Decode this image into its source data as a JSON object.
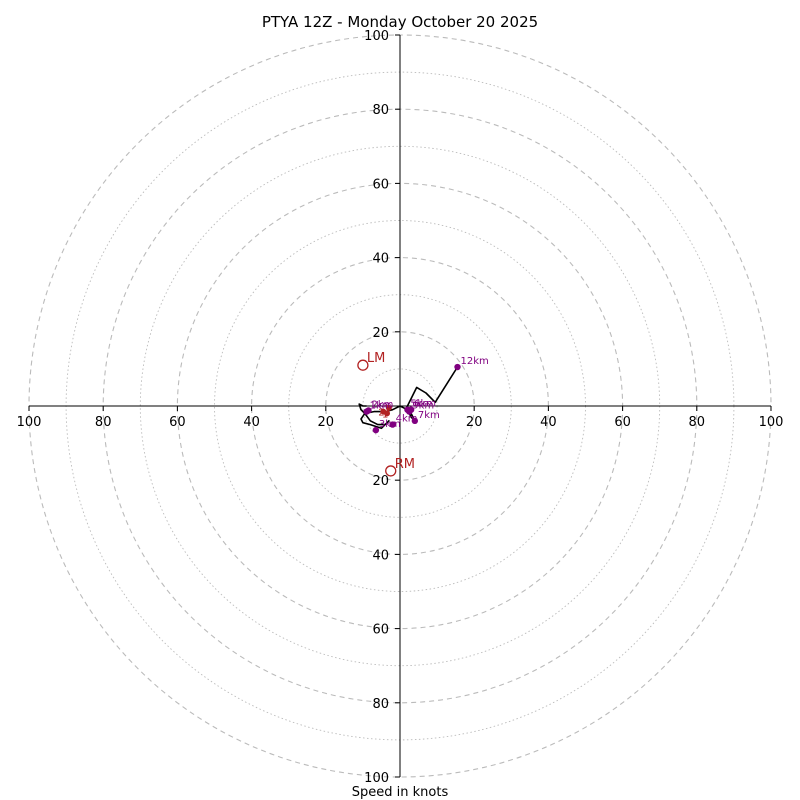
{
  "chart_data": {
    "type": "hodograph",
    "title": "PTYA 12Z - Monday October 20 2025",
    "xlabel": "Speed in knots",
    "speed_max": 100,
    "ring_ticks": [
      20,
      40,
      60,
      80,
      100
    ],
    "grid": "dashed rings every 20 kt, dotted rings every 10 kt",
    "tick_labels": {
      "x_left": [
        "100",
        "80",
        "60",
        "40",
        "20"
      ],
      "x_right": [
        "20",
        "40",
        "60",
        "80",
        "100"
      ],
      "y_top": [
        "100",
        "80",
        "60",
        "40",
        "20"
      ],
      "y_bottom": [
        "20",
        "40",
        "60",
        "80",
        "100"
      ]
    },
    "trace_units": "u/v wind components in knots",
    "trace": [
      [
        -9,
        0
      ],
      [
        -10,
        0
      ],
      [
        -11,
        0.5
      ],
      [
        -10.5,
        -1
      ],
      [
        -9.5,
        -2
      ],
      [
        -8,
        -4
      ],
      [
        -6,
        -5
      ],
      [
        -4,
        -5
      ],
      [
        -3,
        -4
      ],
      [
        -5,
        -6
      ],
      [
        -8,
        -5
      ],
      [
        -10,
        -4.5
      ],
      [
        -10.5,
        -3.5
      ],
      [
        -9.5,
        -2
      ],
      [
        -7,
        -1.5
      ],
      [
        -4,
        -1.5
      ],
      [
        -2,
        -1
      ],
      [
        0,
        0
      ],
      [
        2,
        -1
      ],
      [
        3,
        -2
      ],
      [
        4,
        -4
      ],
      [
        3,
        -3
      ],
      [
        2.5,
        -2
      ],
      [
        1.5,
        -1
      ],
      [
        3,
        2
      ],
      [
        4.5,
        5
      ],
      [
        7,
        3.5
      ],
      [
        9.5,
        1
      ],
      [
        15.5,
        10.5
      ]
    ],
    "height_markers": [
      {
        "label": "1km",
        "u": -9,
        "v": -1.5
      },
      {
        "label": "2km",
        "u": -8.5,
        "v": -1.2
      },
      {
        "label": "3km",
        "u": -6.5,
        "v": -6.5
      },
      {
        "label": "4km",
        "u": -2,
        "v": -5
      },
      {
        "label": "5km",
        "u": 2,
        "v": -1
      },
      {
        "label": "6km",
        "u": 3,
        "v": -1
      },
      {
        "label": "7km",
        "u": 4,
        "v": -4
      },
      {
        "label": "9km",
        "u": 2.5,
        "v": -1.5
      },
      {
        "label": "12km",
        "u": 15.5,
        "v": 10.5
      }
    ],
    "inner_markers": [
      {
        "label": "1",
        "u": -3.5,
        "v": -2
      },
      {
        "label": "2",
        "u": -4.5,
        "v": -1.5
      },
      {
        "label": "3",
        "u": -3,
        "v": -0.5
      }
    ],
    "storm_motion": [
      {
        "label": "LM",
        "u": -10,
        "v": 11
      },
      {
        "label": "RM",
        "u": -2.5,
        "v": -17.5
      }
    ],
    "colors": {
      "trace": "#000000",
      "height_markers": "#800080",
      "inner_markers": "#b22222",
      "storm_motion": "#b22222",
      "grid": "#bbbbbb"
    }
  }
}
